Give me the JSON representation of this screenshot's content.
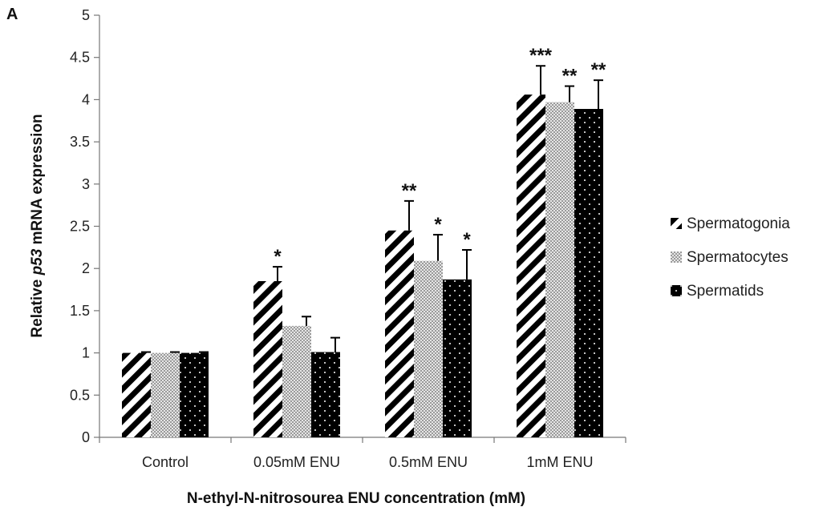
{
  "chart_data": {
    "type": "bar",
    "panel_label": "A",
    "ylabel_parts": [
      "Relative ",
      "p53",
      " mRNA expression"
    ],
    "xlabel": "N-ethyl-N-nitrosourea ENU concentration (mM)",
    "categories": [
      "Control",
      "0.05mM ENU",
      "0.5mM ENU",
      "1mM ENU"
    ],
    "ylim": [
      0,
      5
    ],
    "yticks": [
      "0",
      "0.5",
      "1",
      "1.5",
      "2",
      "2.5",
      "3",
      "3.5",
      "4",
      "4.5",
      "5"
    ],
    "legend_position": "right",
    "grid": false,
    "series": [
      {
        "name": "Spermatogonia",
        "pattern": "diagonal-stripes",
        "values": [
          1.0,
          1.85,
          2.45,
          4.06
        ],
        "errors": [
          0.01,
          0.17,
          0.35,
          0.34
        ],
        "significance": [
          "",
          "*",
          "**",
          "***"
        ]
      },
      {
        "name": "Spermatocytes",
        "pattern": "checkered-gray",
        "values": [
          1.0,
          1.32,
          2.09,
          3.97
        ],
        "errors": [
          0.01,
          0.11,
          0.31,
          0.19
        ],
        "significance": [
          "",
          "",
          "*",
          "**"
        ]
      },
      {
        "name": "Spermatids",
        "pattern": "black-dotted",
        "values": [
          1.0,
          1.01,
          1.87,
          3.89
        ],
        "errors": [
          0.01,
          0.17,
          0.35,
          0.34
        ],
        "significance": [
          "",
          "",
          "*",
          "**"
        ]
      }
    ]
  }
}
